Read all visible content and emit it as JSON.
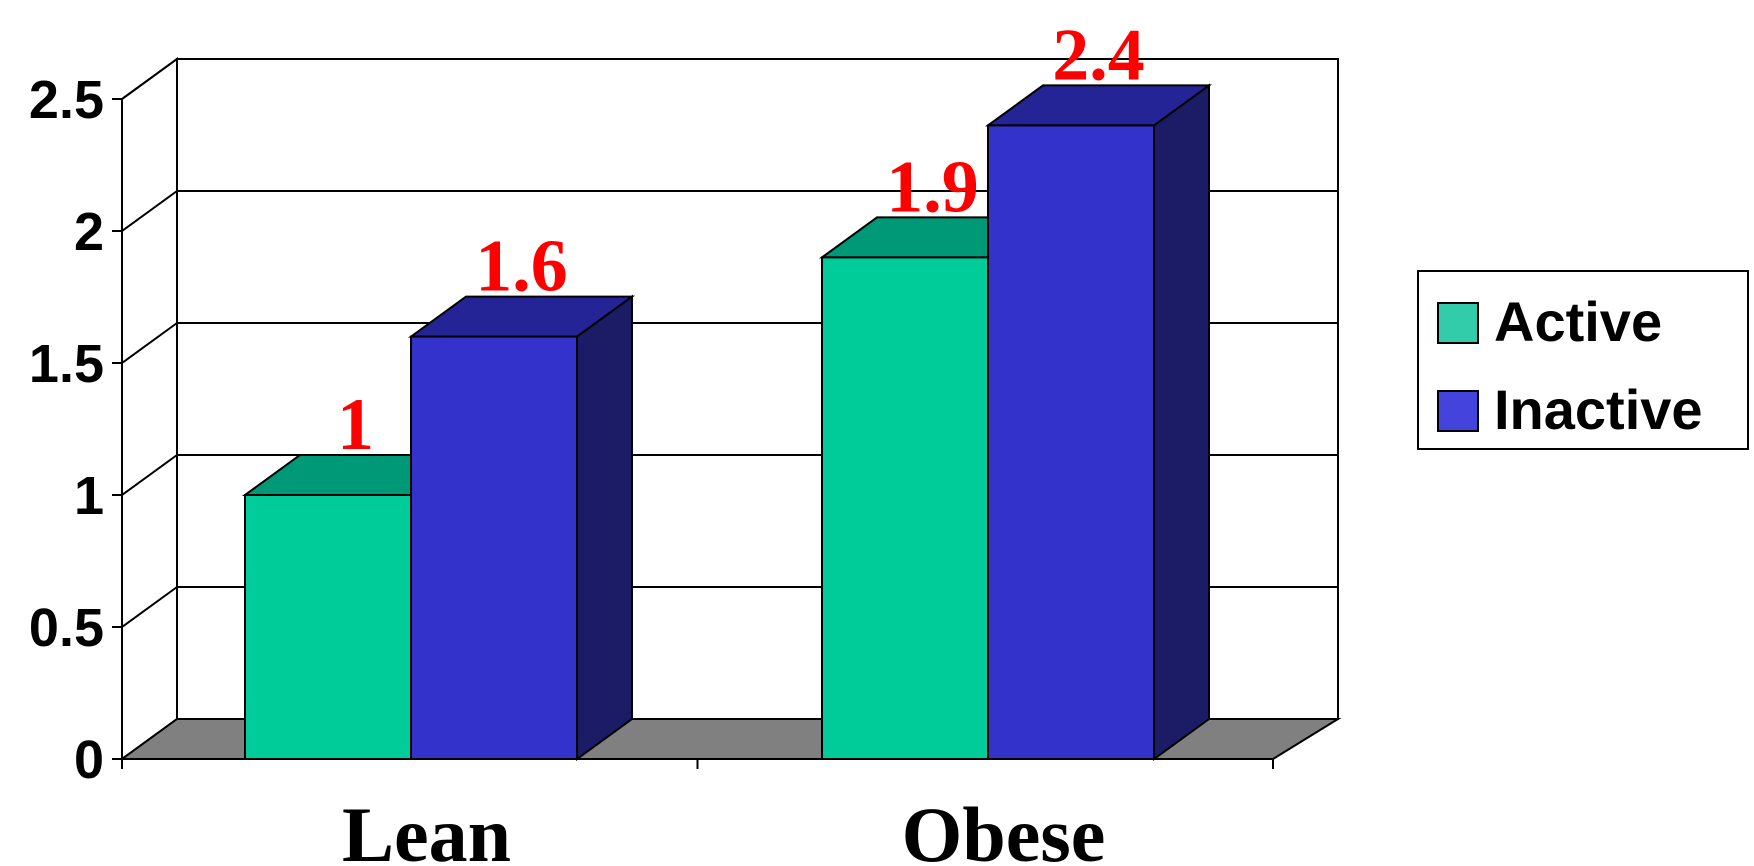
{
  "chart_data": {
    "type": "bar",
    "categories": [
      "Lean",
      "Obese"
    ],
    "series": [
      {
        "name": "Active",
        "values": [
          1,
          1.9
        ],
        "color": "#00cc99",
        "top_color": "#009977"
      },
      {
        "name": "Inactive",
        "values": [
          1.6,
          2.4
        ],
        "color": "#3333cc",
        "top_color": "#242496",
        "side_color": "#1c1c66"
      }
    ],
    "data_labels": [
      {
        "category": "Lean",
        "series": "Active",
        "text": "1"
      },
      {
        "category": "Lean",
        "series": "Inactive",
        "text": "1.6"
      },
      {
        "category": "Obese",
        "series": "Active",
        "text": "1.9"
      },
      {
        "category": "Obese",
        "series": "Inactive",
        "text": "2.4"
      }
    ],
    "data_label_color": "#ff0000",
    "y_ticks": [
      "0",
      "0.5",
      "1",
      "1.5",
      "2",
      "2.5"
    ],
    "ylim": [
      0,
      2.5
    ],
    "grid": true,
    "floor_color": "#808080",
    "legend_position": "right",
    "title": "",
    "xlabel": "",
    "ylabel": ""
  }
}
